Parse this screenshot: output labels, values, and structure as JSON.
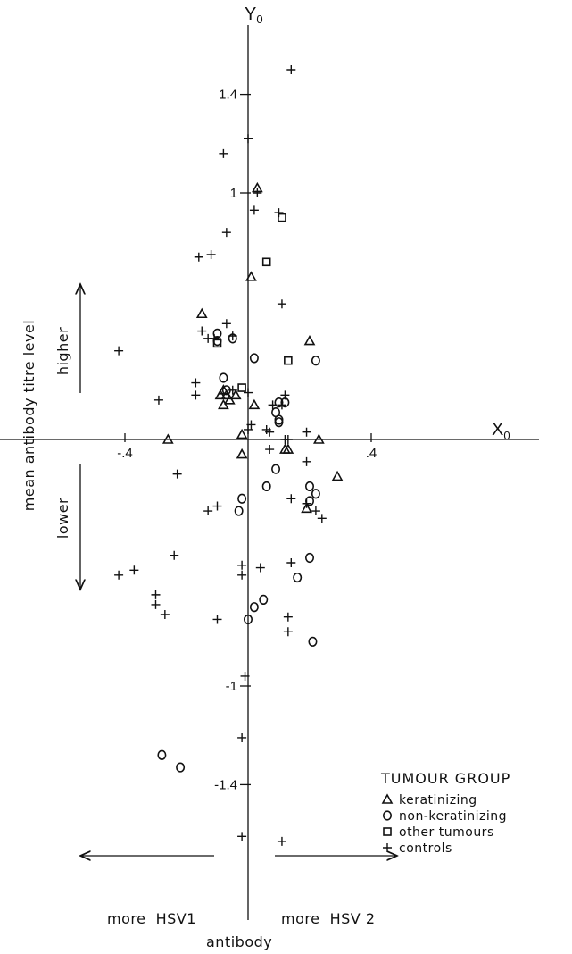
{
  "chart_data": {
    "type": "scatter",
    "x_axis": {
      "name": "X",
      "subscript": "0",
      "ticks": [
        -0.4,
        0.4
      ],
      "tick_labels": [
        "-.4",
        ".4"
      ]
    },
    "y_axis": {
      "name": "Y",
      "subscript": "0",
      "ticks": [
        -1.4,
        -1,
        1,
        1.4
      ],
      "tick_labels": [
        "-1.4",
        "-1",
        "1",
        "1.4"
      ]
    },
    "xlim": [
      -0.82,
      0.96
    ],
    "ylim": [
      -1.72,
      1.64
    ],
    "grid": false,
    "legend_placement": "bottom-right",
    "side_labels": {
      "y_title": "mean antibody titre level",
      "higher": "higher",
      "lower": "lower",
      "left_arrow": "more  HSV1",
      "right_arrow": "more  HSV 2",
      "bottom": "antibody"
    },
    "legend": {
      "title": "TUMOUR GROUP",
      "entries": [
        {
          "name": "keratinizing",
          "marker": "triangle"
        },
        {
          "name": "non-keratinizing",
          "marker": "circle"
        },
        {
          "name": "other tumours",
          "marker": "square"
        },
        {
          "name": "controls",
          "marker": "plus"
        }
      ]
    },
    "series": [
      {
        "name": "keratinizing",
        "marker": "triangle",
        "points": [
          [
            0.03,
            1.02
          ],
          [
            -0.15,
            0.51
          ],
          [
            0.01,
            0.66
          ],
          [
            0.2,
            0.4
          ],
          [
            -0.08,
            0.2
          ],
          [
            -0.09,
            0.18
          ],
          [
            -0.07,
            0.18
          ],
          [
            -0.04,
            0.18
          ],
          [
            -0.06,
            0.16
          ],
          [
            -0.08,
            0.14
          ],
          [
            0.02,
            0.14
          ],
          [
            -0.26,
            0.0
          ],
          [
            -0.02,
            0.02
          ],
          [
            0.12,
            -0.04
          ],
          [
            0.13,
            -0.04
          ],
          [
            0.23,
            0.0
          ],
          [
            -0.02,
            -0.06
          ],
          [
            0.29,
            -0.15
          ],
          [
            0.19,
            -0.28
          ]
        ]
      },
      {
        "name": "non-keratinizing",
        "marker": "circle",
        "points": [
          [
            -0.1,
            0.43
          ],
          [
            -0.1,
            0.4
          ],
          [
            -0.05,
            0.41
          ],
          [
            0.02,
            0.33
          ],
          [
            0.22,
            0.32
          ],
          [
            -0.08,
            0.25
          ],
          [
            -0.07,
            0.2
          ],
          [
            0.1,
            0.15
          ],
          [
            0.12,
            0.15
          ],
          [
            0.09,
            0.11
          ],
          [
            0.1,
            0.08
          ],
          [
            0.1,
            0.07
          ],
          [
            0.09,
            -0.12
          ],
          [
            0.06,
            -0.19
          ],
          [
            0.2,
            -0.19
          ],
          [
            0.22,
            -0.22
          ],
          [
            0.2,
            -0.25
          ],
          [
            -0.02,
            -0.24
          ],
          [
            -0.03,
            -0.29
          ],
          [
            0.2,
            -0.48
          ],
          [
            0.16,
            -0.56
          ],
          [
            0.05,
            -0.65
          ],
          [
            0.02,
            -0.68
          ],
          [
            0.0,
            -0.73
          ],
          [
            0.21,
            -0.82
          ],
          [
            -0.28,
            -1.28
          ],
          [
            -0.22,
            -1.33
          ]
        ]
      },
      {
        "name": "other tumours",
        "marker": "square",
        "points": [
          [
            0.11,
            0.9
          ],
          [
            0.06,
            0.72
          ],
          [
            0.13,
            0.32
          ],
          [
            -0.1,
            0.39
          ],
          [
            -0.02,
            0.21
          ]
        ]
      },
      {
        "name": "controls",
        "marker": "plus",
        "points": [
          [
            0.14,
            1.5
          ],
          [
            0.0,
            1.22
          ],
          [
            -0.08,
            1.16
          ],
          [
            0.03,
            1.0
          ],
          [
            0.02,
            0.93
          ],
          [
            0.1,
            0.92
          ],
          [
            -0.07,
            0.84
          ],
          [
            -0.16,
            0.74
          ],
          [
            -0.12,
            0.75
          ],
          [
            0.11,
            0.55
          ],
          [
            -0.07,
            0.47
          ],
          [
            -0.15,
            0.44
          ],
          [
            -0.13,
            0.41
          ],
          [
            -0.11,
            0.41
          ],
          [
            -0.05,
            0.42
          ],
          [
            -0.42,
            0.36
          ],
          [
            -0.17,
            0.23
          ],
          [
            -0.17,
            0.18
          ],
          [
            -0.29,
            0.16
          ],
          [
            -0.05,
            0.2
          ],
          [
            0.0,
            0.19
          ],
          [
            0.12,
            0.18
          ],
          [
            0.11,
            0.14
          ],
          [
            0.08,
            0.14
          ],
          [
            0.01,
            0.06
          ],
          [
            0.0,
            0.04
          ],
          [
            0.06,
            0.04
          ],
          [
            0.07,
            0.03
          ],
          [
            0.19,
            0.03
          ],
          [
            0.12,
            0.0
          ],
          [
            0.13,
            0.0
          ],
          [
            0.07,
            -0.04
          ],
          [
            0.19,
            -0.09
          ],
          [
            -0.23,
            -0.14
          ],
          [
            0.14,
            -0.24
          ],
          [
            0.19,
            -0.26
          ],
          [
            0.22,
            -0.29
          ],
          [
            0.24,
            -0.32
          ],
          [
            -0.13,
            -0.29
          ],
          [
            -0.1,
            -0.27
          ],
          [
            -0.24,
            -0.47
          ],
          [
            -0.42,
            -0.55
          ],
          [
            -0.37,
            -0.53
          ],
          [
            -0.3,
            -0.63
          ],
          [
            -0.3,
            -0.67
          ],
          [
            -0.27,
            -0.71
          ],
          [
            -0.1,
            -0.73
          ],
          [
            -0.02,
            -0.51
          ],
          [
            0.04,
            -0.52
          ],
          [
            0.14,
            -0.5
          ],
          [
            -0.02,
            -0.55
          ],
          [
            0.13,
            -0.72
          ],
          [
            0.13,
            -0.78
          ],
          [
            -0.01,
            -0.96
          ],
          [
            -0.02,
            -1.21
          ],
          [
            -0.02,
            -1.61
          ],
          [
            0.11,
            -1.63
          ]
        ]
      }
    ]
  }
}
